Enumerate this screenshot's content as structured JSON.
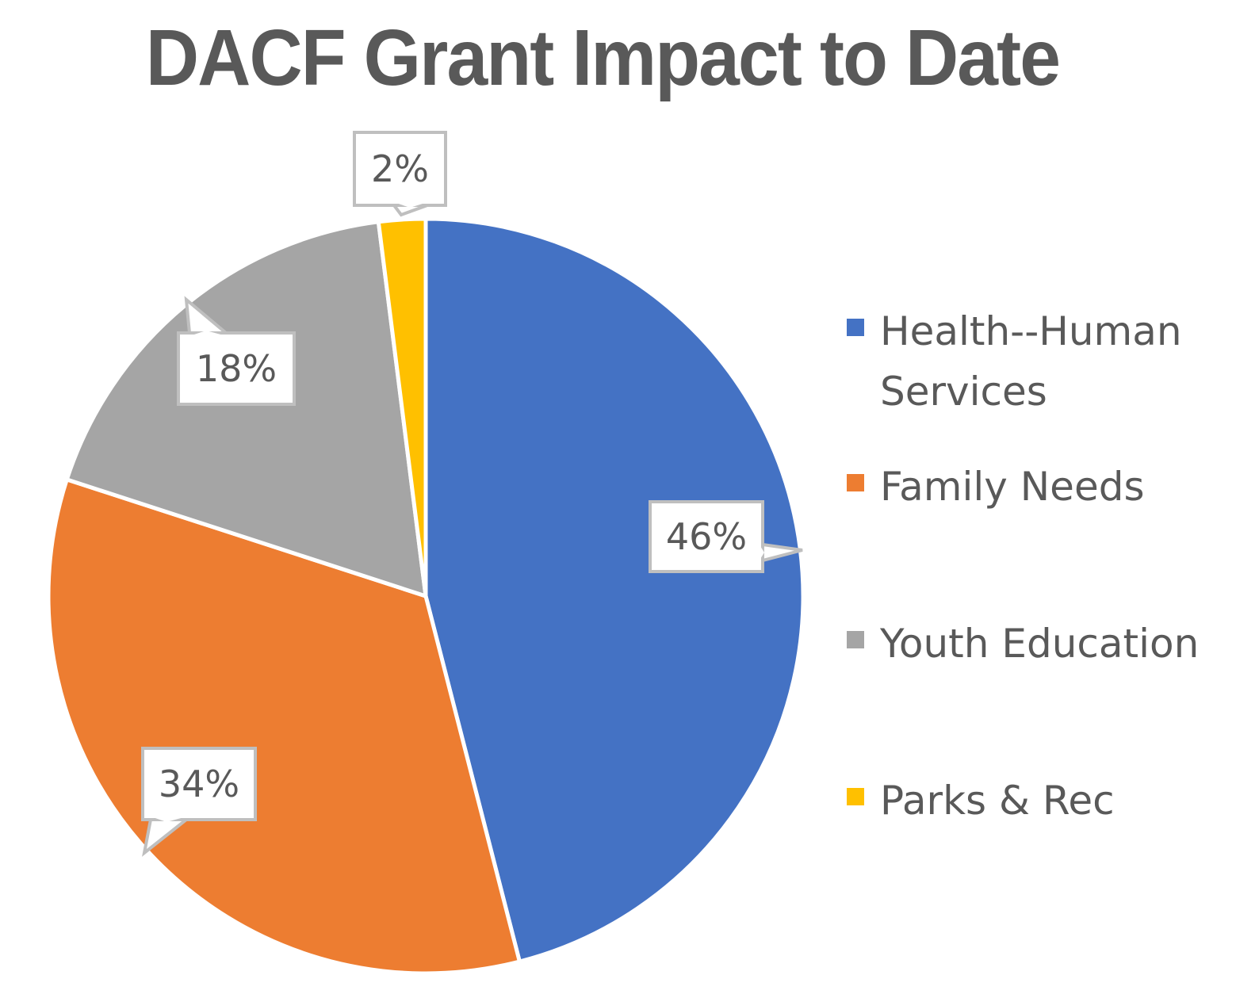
{
  "chart_data": {
    "type": "pie",
    "title": "DACF Grant Impact to Date",
    "categories": [
      "Health--Human Services",
      "Family Needs",
      "Youth Education",
      "Parks & Rec"
    ],
    "values": [
      46,
      34,
      18,
      2
    ],
    "value_labels": [
      "46%",
      "34%",
      "18%",
      "2%"
    ],
    "colors": [
      "#4472C4",
      "#ED7D31",
      "#A5A5A5",
      "#FFC000"
    ],
    "legend_lines": [
      [
        "Health--Human",
        "Services"
      ],
      [
        "Family Needs"
      ],
      [
        "Youth Education"
      ],
      [
        "Parks & Rec"
      ]
    ],
    "legend": "right"
  }
}
